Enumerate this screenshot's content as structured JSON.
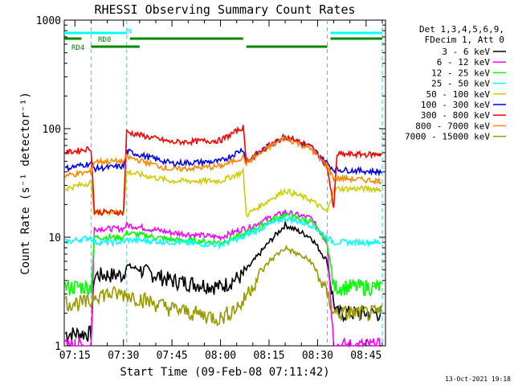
{
  "chart_data": {
    "type": "line",
    "title": "RHESSI Observing Summary Count Rates",
    "xlabel": "Start Time (09-Feb-08 07:11:42)",
    "ylabel": "Count Rate (s⁻¹ detector⁻¹)",
    "ylim": [
      1,
      1000
    ],
    "yscale": "log",
    "xlim": [
      "07:11:42",
      "08:51:00"
    ],
    "x_ticks": [
      "07:15",
      "07:30",
      "07:45",
      "08:00",
      "08:15",
      "08:30",
      "08:45"
    ],
    "y_ticks": [
      "1",
      "10",
      "100",
      "1000"
    ],
    "legend_header": [
      "Det 1,3,4,5,6,9,",
      "FDecim 1, Att 0"
    ],
    "legend_position": "right",
    "footer_date": "13-Oct-2021 19:18",
    "x": [
      "07:12",
      "07:20",
      "07:21",
      "07:30",
      "07:31",
      "07:45",
      "08:00",
      "08:07",
      "08:08",
      "08:15",
      "08:20",
      "08:28",
      "08:33",
      "08:35",
      "08:36",
      "08:50"
    ],
    "series": [
      {
        "name": "3 - 6 keV",
        "color": "#000000",
        "values": [
          1.3,
          1.3,
          4.5,
          4.5,
          5.5,
          4.0,
          3.5,
          4.5,
          5.0,
          9.0,
          13.0,
          10.0,
          6.0,
          2.5,
          2.0,
          2.0
        ]
      },
      {
        "name": "6 - 12 keV",
        "color": "#ff00ff",
        "values": [
          1.0,
          1.0,
          12.0,
          12.0,
          13.0,
          11.0,
          10.0,
          12.0,
          12.0,
          15.0,
          17.0,
          15.0,
          9.0,
          1.0,
          1.0,
          1.0
        ]
      },
      {
        "name": "12 - 25 keV",
        "color": "#00ff00",
        "values": [
          3.5,
          3.5,
          10.0,
          10.0,
          11.0,
          9.5,
          9.0,
          10.5,
          11.0,
          14.0,
          16.0,
          14.0,
          9.0,
          3.5,
          3.5,
          3.5
        ]
      },
      {
        "name": "25 - 50 keV",
        "color": "#00ffff",
        "values": [
          9.0,
          10.0,
          9.0,
          9.0,
          9.5,
          9.0,
          8.5,
          10.0,
          10.5,
          13.0,
          15.0,
          13.0,
          10.0,
          9.0,
          9.0,
          9.0
        ]
      },
      {
        "name": "50 - 100 keV",
        "color": "#cccc00",
        "values": [
          28.0,
          32.0,
          17.0,
          17.0,
          40.0,
          33.0,
          33.0,
          40.0,
          16.0,
          22.0,
          27.0,
          22.0,
          17.0,
          28.0,
          28.0,
          28.0
        ]
      },
      {
        "name": "100 - 300 keV",
        "color": "#0000ff",
        "values": [
          43.0,
          48.0,
          43.0,
          45.0,
          62.0,
          48.0,
          50.0,
          65.0,
          50.0,
          70.0,
          85.0,
          68.0,
          48.0,
          42.0,
          42.0,
          40.0
        ]
      },
      {
        "name": "300 - 800 keV",
        "color": "#ff0000",
        "values": [
          60.0,
          66.0,
          17.0,
          17.0,
          93.0,
          75.0,
          78.0,
          103.0,
          50.0,
          70.0,
          85.0,
          68.0,
          45.0,
          18.0,
          58.0,
          58.0
        ]
      },
      {
        "name": "800 - 7000 keV",
        "color": "#ff8800",
        "values": [
          37.0,
          40.0,
          50.0,
          50.0,
          55.0,
          42.0,
          45.0,
          55.0,
          48.0,
          68.0,
          82.0,
          65.0,
          45.0,
          35.0,
          35.0,
          33.0
        ]
      },
      {
        "name": "7000 - 15000 keV",
        "color": "#999900",
        "values": [
          2.5,
          2.5,
          3.0,
          3.0,
          3.0,
          2.2,
          1.8,
          2.5,
          3.0,
          6.0,
          8.0,
          6.0,
          3.0,
          2.0,
          2.0,
          2.0
        ]
      }
    ],
    "flags": [
      {
        "name": "N",
        "color": "#00ffff",
        "segments": [
          [
            "07:11:42",
            "07:31"
          ],
          [
            "08:34",
            "08:50"
          ]
        ]
      },
      {
        "name": "RD0",
        "color": "#008800",
        "segments": [
          [
            "07:11:42",
            "07:17"
          ],
          [
            "07:32",
            "08:07"
          ],
          [
            "08:34",
            "08:50"
          ]
        ]
      },
      {
        "name": "RD4",
        "color": "#008800",
        "segments": [
          [
            "07:20",
            "07:35"
          ],
          [
            "08:08",
            "08:33"
          ]
        ]
      }
    ],
    "eclipse_boundaries": [
      "07:20",
      "07:31",
      "08:33",
      "08:50"
    ]
  }
}
